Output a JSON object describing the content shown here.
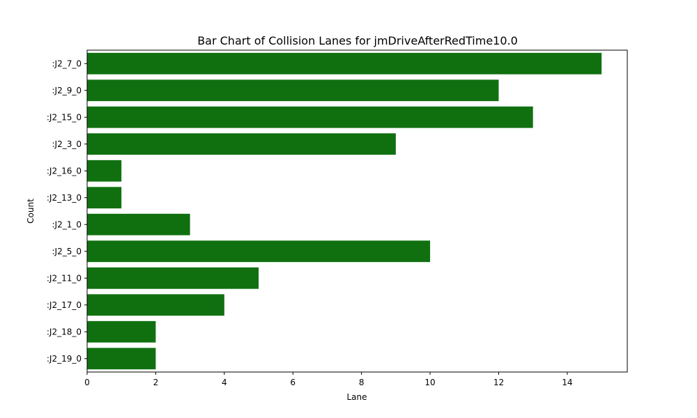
{
  "chart_data": {
    "type": "bar",
    "orientation": "horizontal",
    "title": "Bar Chart of Collision Lanes for jmDriveAfterRedTime10.0",
    "xlabel": "Lane",
    "ylabel": "Count",
    "categories": [
      ":J2_7_0",
      ":J2_9_0",
      ":J2_15_0",
      ":J2_3_0",
      ":J2_16_0",
      ":J2_13_0",
      ":J2_1_0",
      ":J2_5_0",
      ":J2_11_0",
      ":J2_17_0",
      ":J2_18_0",
      ":J2_19_0"
    ],
    "values": [
      15,
      12,
      13,
      9,
      1,
      1,
      3,
      10,
      5,
      4,
      2,
      2
    ],
    "xlim": [
      0,
      15.75
    ],
    "xticks": [
      0,
      2,
      4,
      6,
      8,
      10,
      12,
      14
    ],
    "bar_color": "#107010",
    "grid": false,
    "legend": "none"
  }
}
